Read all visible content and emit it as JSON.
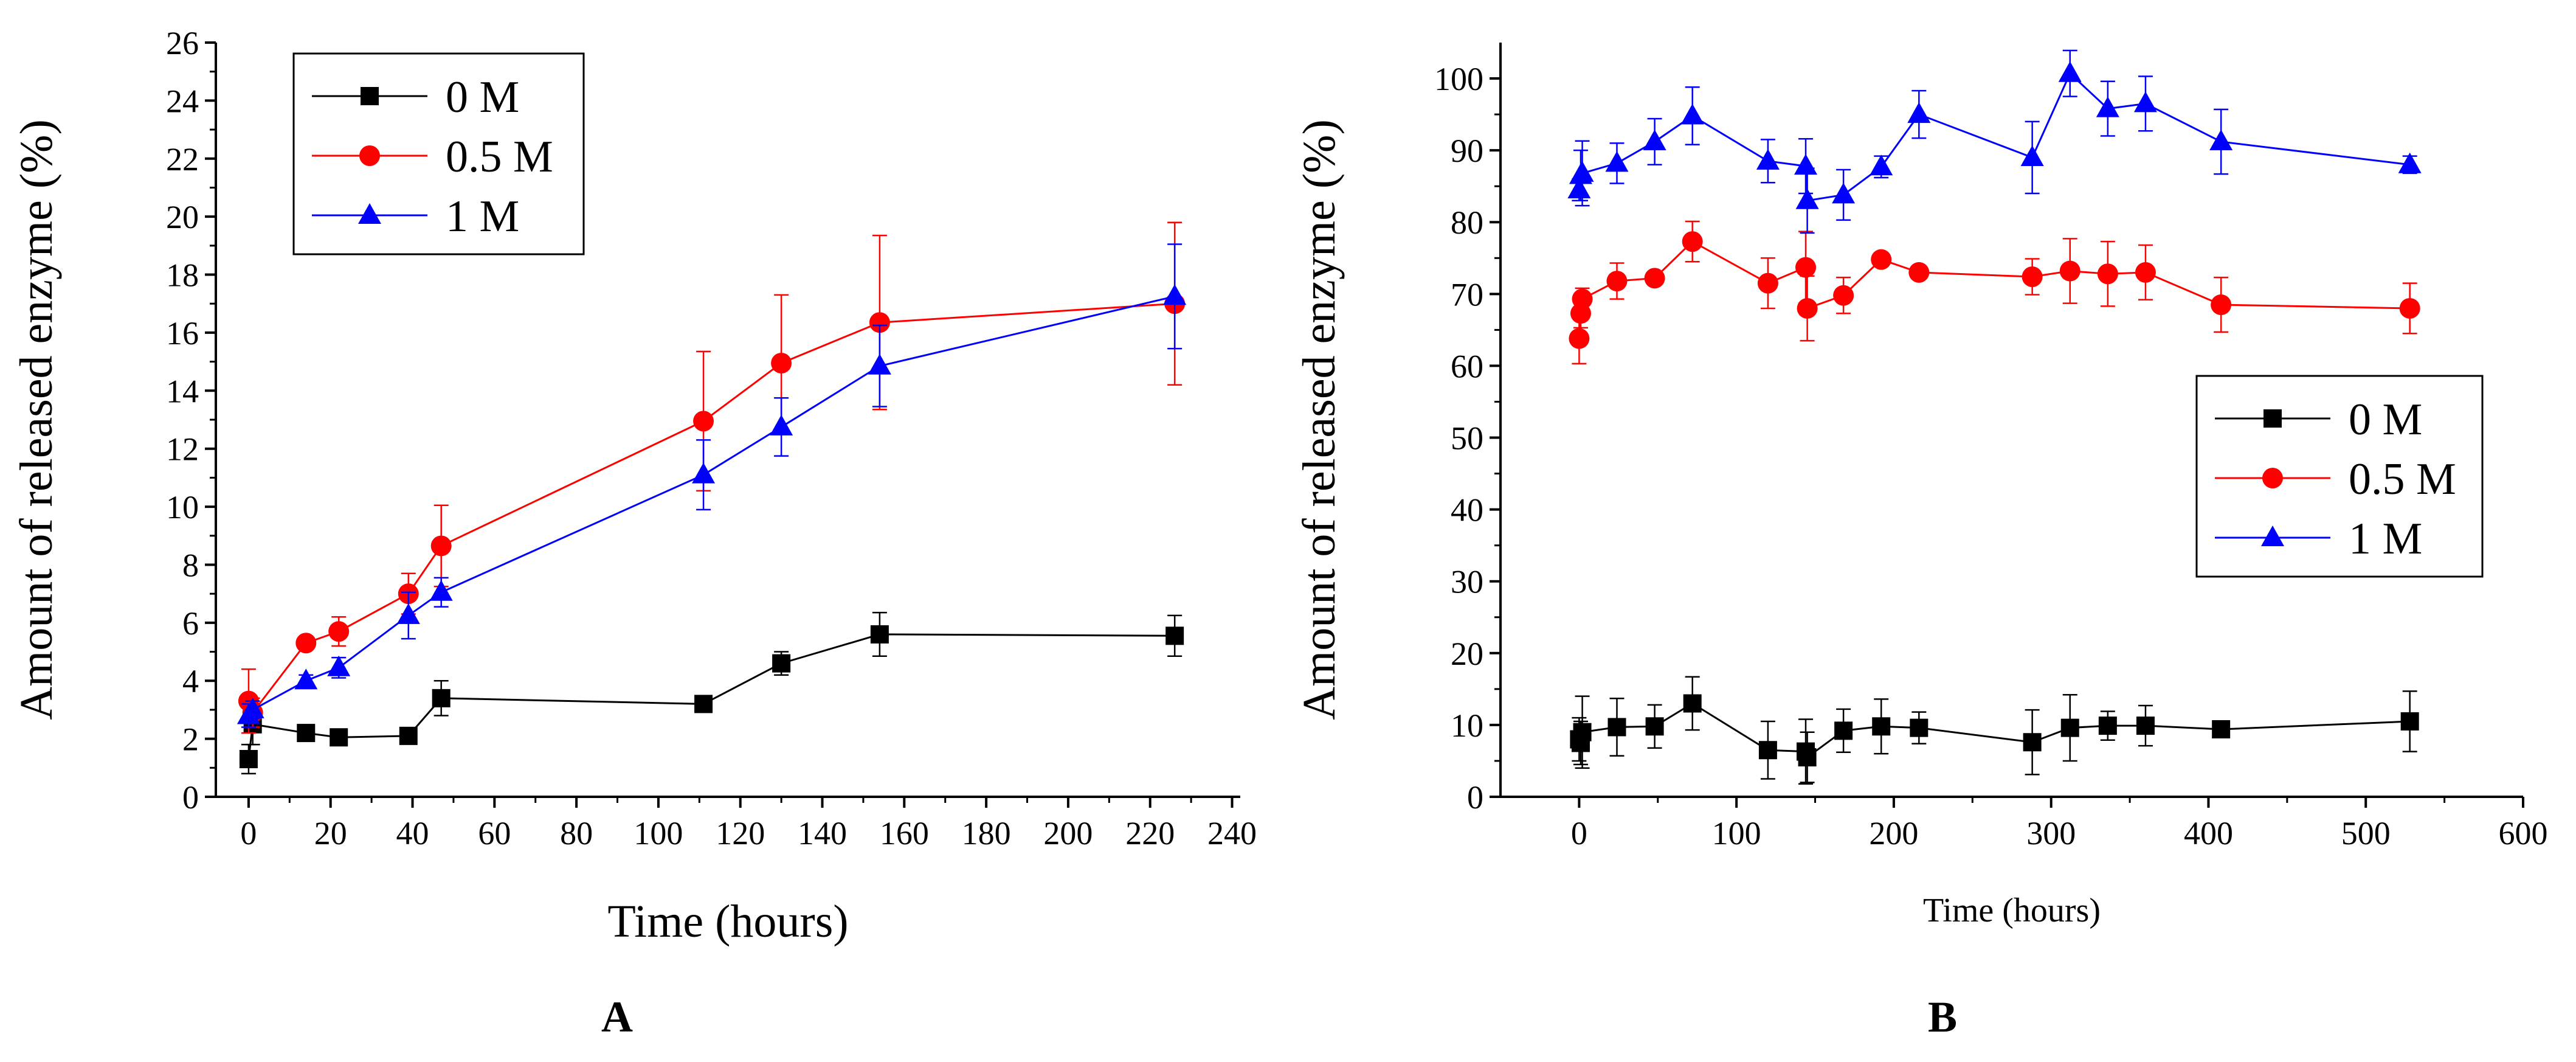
{
  "figure": {
    "panel_a_label": "A",
    "panel_b_label": "B"
  },
  "chart_data": [
    {
      "type": "line",
      "panel": "A",
      "title": "",
      "xlabel": "Time (hours)",
      "ylabel": "Amount of released enzyme (%)",
      "xlim": [
        -8,
        242
      ],
      "ylim": [
        0,
        26
      ],
      "xticks": [
        0,
        20,
        40,
        60,
        80,
        100,
        120,
        140,
        160,
        180,
        200,
        220,
        240
      ],
      "yticks": [
        0,
        2,
        4,
        6,
        8,
        10,
        12,
        14,
        16,
        18,
        20,
        22,
        24,
        26
      ],
      "legend_position": "top-left",
      "series": [
        {
          "name": "0 M",
          "color": "#000000",
          "marker": "square",
          "x": [
            0,
            1,
            14,
            22,
            39,
            47,
            111,
            130,
            154,
            226
          ],
          "values": [
            1.3,
            2.5,
            2.2,
            2.05,
            2.1,
            3.4,
            3.2,
            4.6,
            5.6,
            5.55
          ],
          "errors": [
            0.5,
            0.7,
            0.15,
            0.15,
            0.15,
            0.6,
            0.15,
            0.4,
            0.75,
            0.7
          ]
        },
        {
          "name": "0.5 M",
          "color": "#ff0000",
          "marker": "circle",
          "x": [
            0,
            1,
            14,
            22,
            39,
            47,
            111,
            130,
            154,
            226
          ],
          "values": [
            3.3,
            2.9,
            5.3,
            5.7,
            7.0,
            8.65,
            12.95,
            14.95,
            16.35,
            17.0
          ],
          "errors": [
            1.1,
            0.5,
            0.2,
            0.5,
            0.7,
            1.4,
            2.4,
            2.35,
            3.0,
            2.8
          ]
        },
        {
          "name": "1 M",
          "color": "#0000ff",
          "marker": "triangle",
          "x": [
            0,
            1,
            14,
            22,
            39,
            47,
            111,
            130,
            154,
            226
          ],
          "values": [
            2.8,
            3.0,
            4.0,
            4.45,
            6.25,
            7.05,
            11.1,
            12.75,
            14.85,
            17.25
          ],
          "errors": [
            0.4,
            0.3,
            0.2,
            0.35,
            0.8,
            0.5,
            1.2,
            1.0,
            1.4,
            1.8
          ]
        }
      ]
    },
    {
      "type": "line",
      "panel": "B",
      "title": "",
      "xlabel": "Time (hours)",
      "ylabel": "Amount of released enzyme (%)",
      "xlim": [
        -50,
        600
      ],
      "ylim": [
        0,
        105
      ],
      "xticks": [
        0,
        100,
        200,
        300,
        400,
        500,
        600
      ],
      "yticks": [
        0,
        10,
        20,
        30,
        40,
        50,
        60,
        70,
        80,
        90,
        100
      ],
      "legend_position": "center-right",
      "series": [
        {
          "name": "0 M",
          "color": "#000000",
          "marker": "square",
          "x": [
            0,
            1,
            2,
            24,
            48,
            72,
            120,
            144,
            145,
            168,
            192,
            216,
            288,
            312,
            336,
            360,
            408,
            528
          ],
          "values": [
            8.0,
            7.5,
            9.0,
            9.7,
            9.8,
            13.0,
            6.5,
            6.3,
            5.5,
            9.2,
            9.8,
            9.6,
            7.6,
            9.6,
            9.9,
            9.9,
            9.4,
            10.5
          ],
          "errors": [
            3.0,
            3.0,
            5.0,
            4.0,
            3.0,
            3.7,
            4.0,
            4.5,
            3.5,
            3.0,
            3.8,
            2.2,
            4.5,
            4.6,
            2.0,
            2.8,
            0.5,
            4.2
          ]
        },
        {
          "name": "0.5 M",
          "color": "#ff0000",
          "marker": "circle",
          "x": [
            0,
            1,
            2,
            24,
            48,
            72,
            120,
            144,
            145,
            168,
            192,
            216,
            288,
            312,
            336,
            360,
            408,
            528
          ],
          "values": [
            63.8,
            67.3,
            69.3,
            71.8,
            72.2,
            77.3,
            71.5,
            73.7,
            68.0,
            69.8,
            74.8,
            73.0,
            72.4,
            73.2,
            72.8,
            73.0,
            68.5,
            68.0
          ],
          "errors": [
            3.5,
            2.0,
            1.5,
            2.5,
            0.5,
            2.8,
            3.5,
            5.0,
            4.5,
            2.5,
            0.5,
            0.5,
            2.5,
            4.5,
            4.5,
            3.8,
            3.8,
            3.5
          ]
        },
        {
          "name": "1 M",
          "color": "#0000ff",
          "marker": "triangle",
          "x": [
            0,
            1,
            2,
            24,
            48,
            72,
            120,
            144,
            145,
            168,
            192,
            216,
            288,
            312,
            336,
            360,
            408,
            528
          ],
          "values": [
            84.5,
            86.5,
            86.8,
            88.2,
            91.2,
            94.8,
            88.5,
            87.8,
            83.0,
            83.8,
            87.7,
            95.0,
            89.0,
            100.7,
            95.8,
            96.5,
            91.2,
            88.0
          ],
          "errors": [
            1.5,
            3.5,
            4.5,
            2.8,
            3.2,
            4.0,
            3.0,
            3.8,
            4.5,
            3.5,
            1.5,
            3.3,
            5.0,
            3.2,
            3.8,
            3.8,
            4.5,
            1.2
          ]
        }
      ]
    }
  ]
}
